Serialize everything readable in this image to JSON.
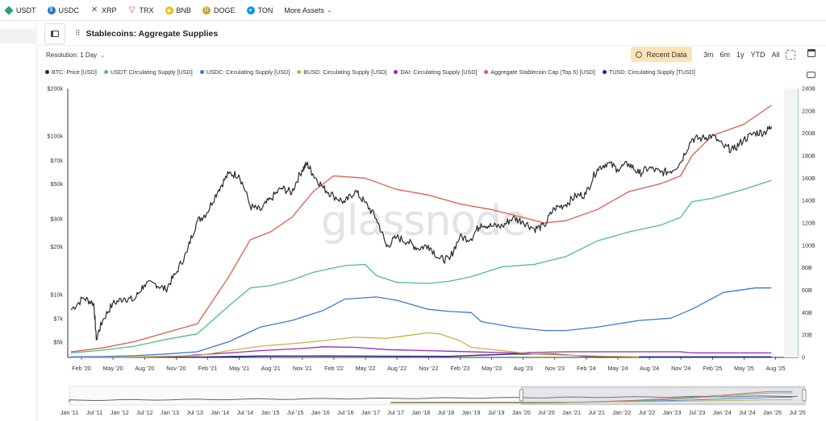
{
  "assets": [
    {
      "label": "USDT",
      "icon": "usdt-icon",
      "color": "#26a17b"
    },
    {
      "label": "USDC",
      "icon": "usdc-icon",
      "color": "#2775ca"
    },
    {
      "label": "XRP",
      "icon": "xrp-icon",
      "color": "#555555"
    },
    {
      "label": "TRX",
      "icon": "trx-icon",
      "color": "#e0323a"
    },
    {
      "label": "BNB",
      "icon": "bnb-icon",
      "color": "#f0b90b"
    },
    {
      "label": "DOGE",
      "icon": "doge-icon",
      "color": "#c2a633"
    },
    {
      "label": "TON",
      "icon": "ton-icon",
      "color": "#0098ea"
    },
    {
      "label": "More Assets",
      "icon": "chevron-down-icon",
      "color": "#555555"
    }
  ],
  "header": {
    "title": "Stablecoins: Aggregate Supplies"
  },
  "controls": {
    "resolution": "Resolution: 1 Day",
    "recent": "Recent Data",
    "ranges": [
      "3m",
      "6m",
      "1y",
      "YTD",
      "All"
    ]
  },
  "watermark": "glassnode",
  "chart_data": {
    "type": "line",
    "title": "Stablecoins: Aggregate Supplies",
    "left_axis": {
      "scale": "log",
      "ticks": [
        "$5k",
        "$7k",
        "$10k",
        "$20k",
        "$30k",
        "$50k",
        "$70k",
        "$100k",
        "$200k"
      ],
      "values": [
        5000,
        7000,
        10000,
        20000,
        30000,
        50000,
        70000,
        100000,
        200000
      ],
      "range": [
        4000,
        200000
      ]
    },
    "right_axis": {
      "scale": "linear",
      "ticks": [
        "0",
        "20B",
        "40B",
        "60B",
        "80B",
        "100B",
        "120B",
        "140B",
        "160B",
        "180B",
        "200B",
        "220B",
        "240B"
      ],
      "values": [
        0,
        20,
        40,
        60,
        80,
        100,
        120,
        140,
        160,
        180,
        200,
        220,
        240
      ],
      "range": [
        0,
        240
      ]
    },
    "x_ticks": [
      "Feb '20",
      "May '20",
      "Aug '20",
      "Nov '20",
      "Feb '21",
      "May '21",
      "Aug '21",
      "Nov '21",
      "Feb '22",
      "May '22",
      "Aug '22",
      "Nov '22",
      "Feb '23",
      "May '23",
      "Aug '23",
      "Nov '23",
      "Feb '24",
      "May '24",
      "Aug '24",
      "Nov '24",
      "Feb '25",
      "May '25",
      "Aug '25"
    ],
    "x_range": [
      2020.0,
      2025.65
    ],
    "navigator_ticks": [
      "Jan '11",
      "Jul '11",
      "Jan '12",
      "Jul '12",
      "Jan '13",
      "Jul '13",
      "Jan '14",
      "Jul '14",
      "Jan '15",
      "Jul '15",
      "Jan '16",
      "Jul '16",
      "Jan '17",
      "Jul '17",
      "Jan '18",
      "Jul '18",
      "Jan '19",
      "Jul '19",
      "Jan '20",
      "Jul '20",
      "Jan '21",
      "Jul '21",
      "Jan '22",
      "Jul '22",
      "Jan '23",
      "Jul '23",
      "Jan '24",
      "Jul '24",
      "Jan '25",
      "Jul '25"
    ],
    "grid": false,
    "legend_position": "top-left",
    "series": [
      {
        "name": "BTC: Price [USD]",
        "color": "#2b2b2b",
        "axis": "left",
        "x": [
          2020.0,
          2020.1,
          2020.18,
          2020.2,
          2020.25,
          2020.33,
          2020.42,
          2020.5,
          2020.58,
          2020.67,
          2020.75,
          2020.83,
          2020.92,
          2021.0,
          2021.08,
          2021.17,
          2021.25,
          2021.33,
          2021.42,
          2021.5,
          2021.58,
          2021.67,
          2021.75,
          2021.83,
          2021.87,
          2021.92,
          2022.0,
          2022.08,
          2022.17,
          2022.25,
          2022.33,
          2022.42,
          2022.5,
          2022.58,
          2022.67,
          2022.75,
          2022.83,
          2022.92,
          2023.0,
          2023.08,
          2023.17,
          2023.25,
          2023.33,
          2023.42,
          2023.5,
          2023.58,
          2023.67,
          2023.75,
          2023.83,
          2023.92,
          2024.0,
          2024.08,
          2024.17,
          2024.25,
          2024.33,
          2024.42,
          2024.5,
          2024.58,
          2024.67,
          2024.75,
          2024.83,
          2024.92,
          2025.0,
          2025.08,
          2025.17,
          2025.25,
          2025.33,
          2025.42,
          2025.5,
          2025.55
        ],
        "values": [
          8000,
          9500,
          8800,
          5200,
          6800,
          8700,
          9500,
          9200,
          11500,
          11700,
          10700,
          13500,
          18500,
          29000,
          33000,
          46000,
          58000,
          57000,
          36000,
          34000,
          40000,
          47000,
          44000,
          61000,
          67000,
          57000,
          47000,
          42000,
          38000,
          45000,
          38000,
          30000,
          20000,
          23000,
          21500,
          19500,
          20500,
          16800,
          16600,
          23000,
          22500,
          28000,
          27000,
          27000,
          30500,
          29000,
          26000,
          27000,
          35000,
          37000,
          42000,
          43000,
          62000,
          68000,
          62000,
          67000,
          58000,
          63000,
          59000,
          60000,
          68000,
          96000,
          97000,
          101000,
          86000,
          82000,
          95000,
          105000,
          106000,
          115000
        ]
      },
      {
        "name": "USDT: Circulating Supply [USD]",
        "color": "#4dbd85",
        "axis": "right",
        "x": [
          2020.0,
          2020.25,
          2020.5,
          2020.75,
          2021.0,
          2021.25,
          2021.42,
          2021.58,
          2021.75,
          2021.92,
          2022.17,
          2022.33,
          2022.42,
          2022.58,
          2022.83,
          2023.0,
          2023.17,
          2023.42,
          2023.67,
          2023.92,
          2024.17,
          2024.42,
          2024.67,
          2024.83,
          2024.92,
          2025.08,
          2025.33,
          2025.55
        ],
        "values": [
          4.1,
          6.5,
          10,
          16,
          21,
          46,
          62,
          64,
          69,
          76,
          82,
          83,
          73,
          67,
          66,
          68,
          72,
          81,
          83,
          90,
          104,
          112,
          118,
          125,
          139,
          142,
          150,
          158
        ]
      },
      {
        "name": "USDC: Circulating Supply [USD]",
        "color": "#3c78d8",
        "axis": "right",
        "x": [
          2020.0,
          2020.25,
          2020.5,
          2020.75,
          2021.0,
          2021.25,
          2021.5,
          2021.75,
          2022.0,
          2022.17,
          2022.42,
          2022.58,
          2022.83,
          2023.0,
          2023.17,
          2023.25,
          2023.5,
          2023.75,
          2023.92,
          2024.17,
          2024.5,
          2024.75,
          2024.92,
          2025.17,
          2025.42,
          2025.55
        ],
        "values": [
          0.5,
          0.8,
          1.5,
          3,
          5,
          14,
          27,
          33,
          42,
          52,
          54,
          51,
          43,
          41,
          40,
          32,
          27,
          24,
          24,
          27,
          33,
          35,
          43,
          58,
          62,
          62
        ]
      },
      {
        "name": "BUSD: Circulating Supply [USD]",
        "color": "#c9b243",
        "axis": "right",
        "x": [
          2020.0,
          2020.5,
          2021.0,
          2021.25,
          2021.5,
          2021.83,
          2022.0,
          2022.25,
          2022.5,
          2022.83,
          2022.92,
          2023.08,
          2023.17,
          2023.42,
          2023.67,
          2023.92,
          2024.25,
          2024.5
        ],
        "values": [
          0.2,
          0.5,
          1.5,
          6,
          10,
          13,
          15,
          18,
          17,
          22,
          21,
          15,
          9,
          6,
          3,
          2,
          1,
          0.6
        ]
      },
      {
        "name": "DAI: Circulating Supply [USD]",
        "color": "#9c27b0",
        "axis": "right",
        "x": [
          2020.0,
          2020.5,
          2020.83,
          2021.25,
          2021.5,
          2021.83,
          2022.0,
          2022.25,
          2022.5,
          2022.83,
          2023.0,
          2023.5,
          2023.92,
          2024.25,
          2024.5,
          2024.83,
          2024.92,
          2025.25,
          2025.55
        ],
        "values": [
          0.1,
          0.3,
          1,
          4,
          6,
          8,
          9.5,
          9,
          7,
          6,
          5.5,
          4,
          5,
          5,
          5,
          5,
          4,
          4,
          4
        ]
      },
      {
        "name": "Aggregate Stablecoin Cap (Top 5) [USD]",
        "color": "#e05a4b",
        "axis": "right",
        "x": [
          2020.0,
          2020.25,
          2020.5,
          2020.75,
          2021.0,
          2021.25,
          2021.42,
          2021.58,
          2021.75,
          2021.92,
          2022.08,
          2022.33,
          2022.58,
          2022.83,
          2023.08,
          2023.33,
          2023.58,
          2023.75,
          2023.92,
          2024.17,
          2024.42,
          2024.67,
          2024.83,
          2024.92,
          2025.08,
          2025.33,
          2025.55
        ],
        "values": [
          5,
          8.5,
          14,
          22,
          30,
          72,
          105,
          112,
          125,
          148,
          162,
          160,
          150,
          145,
          137,
          132,
          125,
          120,
          122,
          132,
          148,
          155,
          162,
          180,
          198,
          208,
          225
        ]
      },
      {
        "name": "TUSD: Circulating Supply [TUSD]",
        "color": "#1a237e",
        "axis": "right",
        "x": [
          2020.0,
          2021.0,
          2021.5,
          2022.0,
          2022.5,
          2023.0,
          2023.25,
          2023.5,
          2023.83,
          2024.08,
          2024.5,
          2025.0,
          2025.55
        ],
        "values": [
          0.1,
          0.3,
          1.2,
          1.3,
          1.1,
          1.0,
          2.0,
          3.0,
          3.0,
          1.0,
          0.5,
          0.5,
          0.5
        ]
      }
    ]
  }
}
